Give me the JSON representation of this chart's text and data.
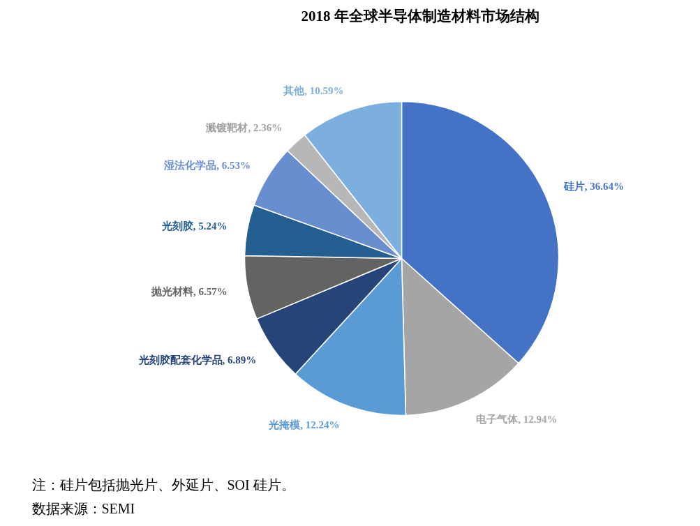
{
  "chart_data": {
    "type": "pie",
    "title": "2018 年全球半导体制造材料市场结构",
    "categories": [
      "硅片",
      "电子气体",
      "光掩模",
      "光刻胶配套化学品",
      "抛光材料",
      "光刻胶",
      "湿法化学品",
      "溅镀靶材",
      "其他"
    ],
    "values": [
      36.64,
      12.94,
      12.24,
      6.89,
      6.57,
      5.24,
      6.53,
      2.36,
      10.59
    ],
    "colors": [
      "#4472c4",
      "#a5a5a5",
      "#5b9bd5",
      "#264478",
      "#636363",
      "#255e91",
      "#698ed0",
      "#b7b7b7",
      "#7cafdd"
    ],
    "value_labels": [
      "36.64%",
      "12.94%",
      "12.24%",
      "6.89%",
      "6.57%",
      "5.24%",
      "6.53%",
      "2.36%",
      "10.59%"
    ],
    "annotations": [
      "注：硅片包括抛光片、外延片、SOI 硅片。",
      "数据来源：SEMI"
    ]
  }
}
